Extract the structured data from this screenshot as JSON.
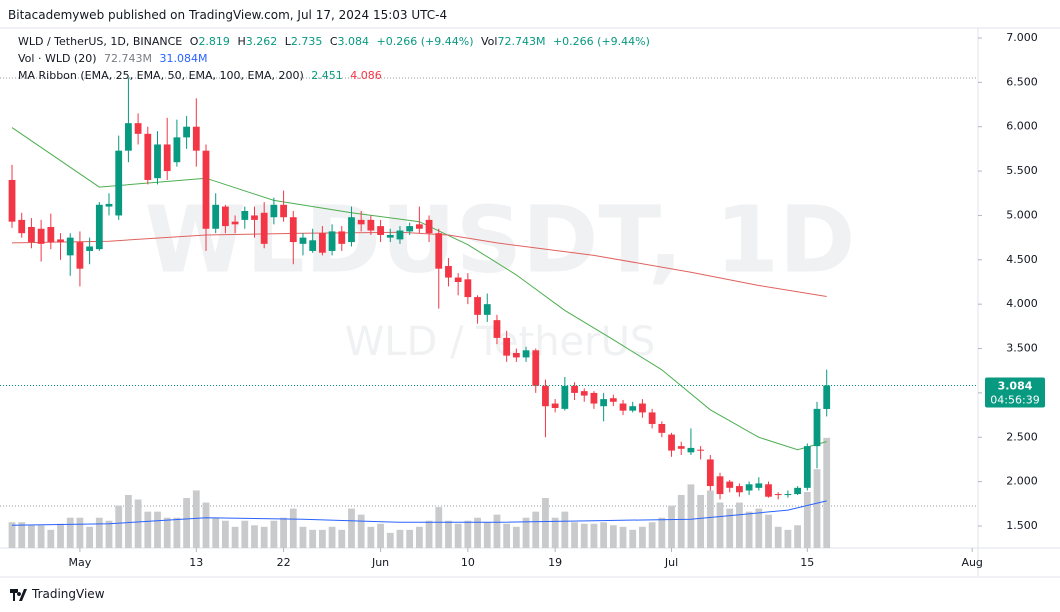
{
  "header": {
    "published": "Bitacademyweb published on TradingView.com, Jul 17, 2024 15:03 UTC-4"
  },
  "legend": {
    "symbol": "WLD / TetherUS, 1D, BINANCE",
    "o": "O",
    "h": "H",
    "l": "L",
    "c": "C",
    "change": "+0.266 (+9.44%)",
    "vol_label": "Vol",
    "vol_value": "72.743M",
    "vol_change": "+0.266 (+9.44%)",
    "vol_study": "Vol · WLD (20)",
    "vol_study_value": "72.743M",
    "vol_study_ma": "31.084M",
    "ma_study": "MA Ribbon (EMA, 25, EMA, 50, EMA, 100, EMA, 200)",
    "ma_1": "2.451",
    "ma_2": "4.086"
  },
  "watermark": {
    "symbol": "WLDUSDT, 1D",
    "name": "WLD / TetherUS"
  },
  "countdown": "04:56:39",
  "footer": {
    "brand": "TradingView"
  },
  "chart_data": {
    "type": "candlestick",
    "up_color": "#089981",
    "down_color": "#f23645",
    "open": [
      5.4,
      4.95,
      4.87,
      4.85,
      4.87,
      4.73,
      4.55,
      4.7,
      4.6,
      4.62,
      5.1,
      5.0,
      5.73,
      6.04,
      5.92,
      5.42,
      5.8,
      5.6,
      5.88,
      6.0,
      5.73,
      4.85,
      5.1,
      4.93,
      4.95,
      5.0,
      5.03,
      4.98,
      5.12,
      4.98,
      4.68,
      4.6,
      4.8,
      4.6,
      4.82,
      4.7,
      4.95,
      4.95,
      4.88,
      4.75,
      4.73,
      4.82,
      4.9,
      4.95,
      4.8,
      4.43,
      4.3,
      4.28,
      4.08,
      3.88,
      3.82,
      3.62,
      3.45,
      3.4,
      3.48,
      3.08,
      2.88,
      2.82,
      3.08,
      3.02,
      3.0,
      2.85,
      2.94,
      2.88,
      2.8,
      2.88,
      2.78,
      2.65,
      2.53,
      2.4,
      2.33,
      2.36,
      2.25,
      2.06,
      2.0,
      1.95,
      1.9,
      1.93,
      1.97,
      1.86,
      1.85,
      1.86,
      1.93,
      2.4,
      2.819
    ],
    "high": [
      5.57,
      5.03,
      4.97,
      4.95,
      5.02,
      4.8,
      4.8,
      4.82,
      4.75,
      5.15,
      5.25,
      5.9,
      6.55,
      6.15,
      6.0,
      5.95,
      6.1,
      6.08,
      6.12,
      6.32,
      5.8,
      5.25,
      5.12,
      5.0,
      5.1,
      5.1,
      5.15,
      5.2,
      5.28,
      5.05,
      4.8,
      4.85,
      4.88,
      4.9,
      4.88,
      5.1,
      5.05,
      5.0,
      4.95,
      4.85,
      4.88,
      4.92,
      5.1,
      5.0,
      4.85,
      4.52,
      4.35,
      4.35,
      4.1,
      4.12,
      3.88,
      3.7,
      3.5,
      3.52,
      3.5,
      3.15,
      2.93,
      3.18,
      3.12,
      3.05,
      3.02,
      3.0,
      2.98,
      2.92,
      2.9,
      2.93,
      2.82,
      2.68,
      2.55,
      2.45,
      2.6,
      2.4,
      2.3,
      2.1,
      2.02,
      1.98,
      2.0,
      2.05,
      2.0,
      1.88,
      1.9,
      1.95,
      2.43,
      2.9,
      3.262
    ],
    "low": [
      4.86,
      4.75,
      4.63,
      4.48,
      4.62,
      4.5,
      4.32,
      4.2,
      4.45,
      4.6,
      5.0,
      4.95,
      5.6,
      5.8,
      5.35,
      5.35,
      5.4,
      5.55,
      5.75,
      5.55,
      4.6,
      4.8,
      4.8,
      4.8,
      4.85,
      4.75,
      4.63,
      4.9,
      4.93,
      4.45,
      4.55,
      4.58,
      4.55,
      4.55,
      4.6,
      4.65,
      4.82,
      4.78,
      4.7,
      4.7,
      4.68,
      4.78,
      4.8,
      4.7,
      3.95,
      4.2,
      4.1,
      4.0,
      3.78,
      3.8,
      3.55,
      3.35,
      3.35,
      3.35,
      3.0,
      2.5,
      2.78,
      2.8,
      2.92,
      2.9,
      2.82,
      2.68,
      2.85,
      2.75,
      2.78,
      2.72,
      2.6,
      2.5,
      2.28,
      2.3,
      2.3,
      2.25,
      1.9,
      1.8,
      1.88,
      1.83,
      1.85,
      1.9,
      1.82,
      1.8,
      1.82,
      1.85,
      1.9,
      2.15,
      2.735
    ],
    "close": [
      4.93,
      4.8,
      4.7,
      4.68,
      4.7,
      4.7,
      4.75,
      4.4,
      4.65,
      5.12,
      5.13,
      5.73,
      6.04,
      5.92,
      5.4,
      5.8,
      5.5,
      5.88,
      6.0,
      5.73,
      4.85,
      5.12,
      4.88,
      4.9,
      5.05,
      4.95,
      4.68,
      5.12,
      4.98,
      4.7,
      4.75,
      4.72,
      4.58,
      4.82,
      4.68,
      4.98,
      4.9,
      4.83,
      4.78,
      4.78,
      4.83,
      4.88,
      4.85,
      4.8,
      4.4,
      4.3,
      4.25,
      4.08,
      3.88,
      4.0,
      3.62,
      3.42,
      3.4,
      3.48,
      3.08,
      2.85,
      2.83,
      3.08,
      3.0,
      2.97,
      2.88,
      2.93,
      2.9,
      2.8,
      2.85,
      2.78,
      2.65,
      2.55,
      2.35,
      2.37,
      2.38,
      2.35,
      1.95,
      1.86,
      1.93,
      1.88,
      1.97,
      1.98,
      1.83,
      1.85,
      1.86,
      1.93,
      2.4,
      2.82,
      3.084
    ],
    "volume": [
      17,
      17,
      15,
      15,
      12,
      16,
      20,
      20,
      14,
      20,
      18,
      28,
      35,
      32,
      24,
      24,
      20,
      20,
      33,
      38,
      30,
      20,
      18,
      14,
      18,
      15,
      14,
      18,
      20,
      26,
      14,
      12,
      12,
      14,
      12,
      26,
      22,
      14,
      16,
      10,
      12,
      12,
      14,
      18,
      27,
      18,
      16,
      18,
      20,
      17,
      22,
      16,
      14,
      20,
      24,
      33,
      20,
      24,
      17,
      16,
      16,
      17,
      15,
      14,
      12,
      14,
      17,
      20,
      28,
      35,
      42,
      35,
      38,
      30,
      26,
      30,
      24,
      26,
      22,
      14,
      12,
      15,
      37,
      52,
      72.743
    ],
    "volume_color": "#c9cacc",
    "volume_lim": [
      0,
      342
    ],
    "lines": [
      {
        "color": "#4caf50",
        "x": [
          0,
          9,
          20,
          27,
          35,
          42,
          47,
          52,
          57,
          62,
          67,
          72,
          77,
          81,
          84
        ],
        "values": [
          5.99,
          5.32,
          5.42,
          5.17,
          5.03,
          4.93,
          4.67,
          4.33,
          3.93,
          3.6,
          3.26,
          2.81,
          2.5,
          2.36,
          2.451
        ]
      },
      {
        "color": "#e0625f",
        "x": [
          0,
          10,
          20,
          30,
          40,
          45,
          50,
          60,
          70,
          77,
          84
        ],
        "values": [
          4.69,
          4.71,
          4.78,
          4.8,
          4.81,
          4.78,
          4.69,
          4.55,
          4.36,
          4.21,
          4.086
        ]
      }
    ],
    "volume_line": {
      "color": "#2962ff",
      "x": [
        0,
        10,
        20,
        30,
        40,
        50,
        60,
        70,
        75,
        80,
        84
      ],
      "values": [
        15,
        16,
        20,
        19,
        17,
        17,
        18,
        19,
        22,
        25,
        31.084
      ]
    },
    "reference_lines": [
      6.549,
      1.726
    ],
    "xlim": [
      -1.24,
      99.6
    ],
    "xticks": [
      {
        "value": 7,
        "label": "May"
      },
      {
        "value": 19,
        "label": "13"
      },
      {
        "value": 28,
        "label": "22"
      },
      {
        "value": 38,
        "label": "Jun"
      },
      {
        "value": 47,
        "label": "10"
      },
      {
        "value": 56,
        "label": "19"
      },
      {
        "value": 68,
        "label": "Jul"
      },
      {
        "value": 82,
        "label": "15"
      },
      {
        "value": 99,
        "label": "Aug"
      }
    ],
    "ylim": [
      1.252,
      7.09
    ],
    "yticks": [
      {
        "value": 7,
        "label": "7.000"
      },
      {
        "value": 6.5,
        "label": "6.500"
      },
      {
        "value": 6,
        "label": "6.000"
      },
      {
        "value": 5.5,
        "label": "5.500"
      },
      {
        "value": 5,
        "label": "5.000"
      },
      {
        "value": 4.5,
        "label": "4.500"
      },
      {
        "value": 4,
        "label": "4.000"
      },
      {
        "value": 3.5,
        "label": "3.500"
      },
      {
        "value": 3,
        "label": "3.000"
      },
      {
        "value": 2.5,
        "label": "2.500"
      },
      {
        "value": 2,
        "label": "2.000"
      },
      {
        "value": 1.5,
        "label": "1.500"
      }
    ]
  }
}
